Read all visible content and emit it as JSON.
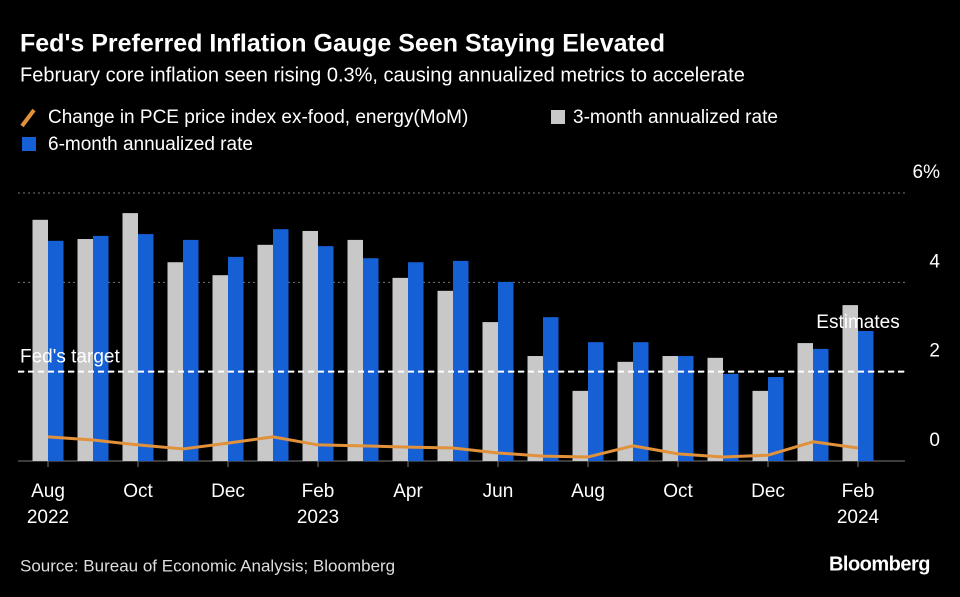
{
  "chart_data": {
    "type": "bar",
    "title": "Fed's Preferred Inflation Gauge Seen Staying Elevated",
    "subtitle": "February core inflation seen rising 0.3%, causing annualized metrics to accelerate",
    "categories": [
      "Aug",
      null,
      "Oct",
      null,
      "Dec",
      null,
      "Feb",
      null,
      "Apr",
      null,
      "Jun",
      null,
      "Aug",
      null,
      "Oct",
      null,
      "Dec",
      null,
      "Feb"
    ],
    "years": [
      "2022",
      null,
      null,
      null,
      null,
      null,
      "2023",
      null,
      null,
      null,
      null,
      null,
      null,
      null,
      null,
      null,
      null,
      null,
      "2024"
    ],
    "series": [
      {
        "name": "Change in PCE price index ex-food, energy(MoM)",
        "type": "line",
        "color": "#e0913a",
        "values": [
          0.54,
          0.47,
          0.36,
          0.27,
          0.4,
          0.54,
          0.36,
          0.34,
          0.31,
          0.29,
          0.18,
          0.11,
          0.09,
          0.34,
          0.16,
          0.09,
          0.13,
          0.43,
          0.29
        ]
      },
      {
        "name": "3-month annualized rate",
        "type": "bar",
        "color": "#c8c8c8",
        "values": [
          5.4,
          4.97,
          5.55,
          4.45,
          4.16,
          4.84,
          5.15,
          4.95,
          4.1,
          3.81,
          3.11,
          2.35,
          1.57,
          2.22,
          2.35,
          2.31,
          1.57,
          2.64,
          3.49
        ]
      },
      {
        "name": "6-month annualized rate",
        "type": "bar",
        "color": "#1660d6",
        "values": [
          4.93,
          5.04,
          5.08,
          4.95,
          4.57,
          5.19,
          4.81,
          4.54,
          4.45,
          4.48,
          4.01,
          3.22,
          2.66,
          2.66,
          2.35,
          1.95,
          1.88,
          2.51,
          2.91
        ]
      }
    ],
    "ylim": [
      0,
      6
    ],
    "yticks": [
      0,
      2,
      4,
      {
        "value": 6,
        "label": "6%"
      }
    ],
    "grid": true,
    "target": {
      "value": 2,
      "label": "Fed's target"
    },
    "annotation": "Estimates",
    "source": "Source: Bureau of Economic Analysis; Bloomberg",
    "brand": "Bloomberg"
  }
}
